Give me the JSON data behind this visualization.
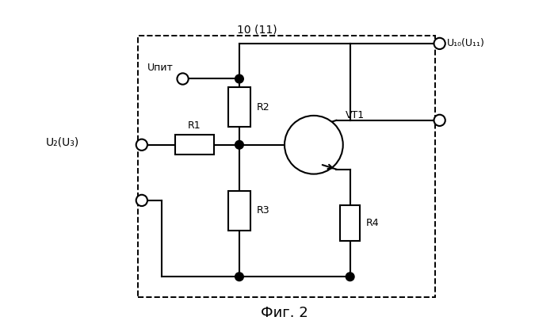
{
  "title": "Фиг. 2",
  "title_fontsize": 13,
  "background_color": "#ffffff",
  "line_color": "#000000",
  "figsize": [
    6.99,
    4.19
  ],
  "dpi": 100,
  "labels": {
    "block_label": "10 (11)",
    "u_pit": "Uпит",
    "u2u3": "U₂(U₃)",
    "u10u11": "U₁₀(U₁₁)",
    "R1": "R1",
    "R2": "R2",
    "R3": "R3",
    "R4": "R4",
    "VT1": "VT1"
  }
}
